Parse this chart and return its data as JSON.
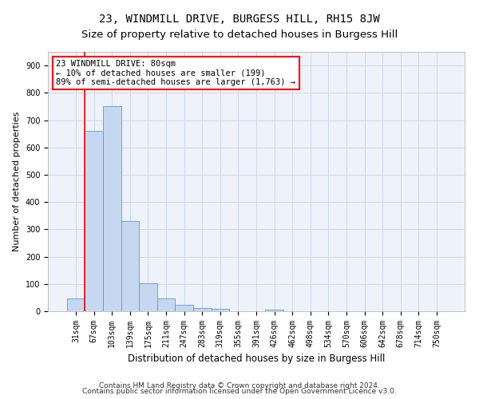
{
  "title1": "23, WINDMILL DRIVE, BURGESS HILL, RH15 8JW",
  "title2": "Size of property relative to detached houses in Burgess Hill",
  "xlabel": "Distribution of detached houses by size in Burgess Hill",
  "ylabel": "Number of detached properties",
  "categories": [
    "31sqm",
    "67sqm",
    "103sqm",
    "139sqm",
    "175sqm",
    "211sqm",
    "247sqm",
    "283sqm",
    "319sqm",
    "355sqm",
    "391sqm",
    "426sqm",
    "462sqm",
    "498sqm",
    "534sqm",
    "570sqm",
    "606sqm",
    "642sqm",
    "678sqm",
    "714sqm",
    "750sqm"
  ],
  "values": [
    47,
    661,
    750,
    330,
    103,
    48,
    22,
    13,
    8,
    0,
    0,
    5,
    0,
    0,
    0,
    0,
    0,
    0,
    0,
    0,
    0
  ],
  "bar_color": "#c5d8f0",
  "bar_edge_color": "#5b9bd5",
  "grid_color": "#c8d4e8",
  "annotation_line1": "23 WINDMILL DRIVE: 80sqm",
  "annotation_line2": "← 10% of detached houses are smaller (199)",
  "annotation_line3": "89% of semi-detached houses are larger (1,763) →",
  "red_line_x": 0.5,
  "ylim": [
    0,
    950
  ],
  "yticks": [
    0,
    100,
    200,
    300,
    400,
    500,
    600,
    700,
    800,
    900
  ],
  "footer1": "Contains HM Land Registry data © Crown copyright and database right 2024.",
  "footer2": "Contains public sector information licensed under the Open Government Licence v3.0.",
  "title1_fontsize": 10,
  "title2_fontsize": 9.5,
  "xlabel_fontsize": 8.5,
  "ylabel_fontsize": 8,
  "tick_fontsize": 7,
  "annotation_fontsize": 7.5,
  "footer_fontsize": 6.5
}
